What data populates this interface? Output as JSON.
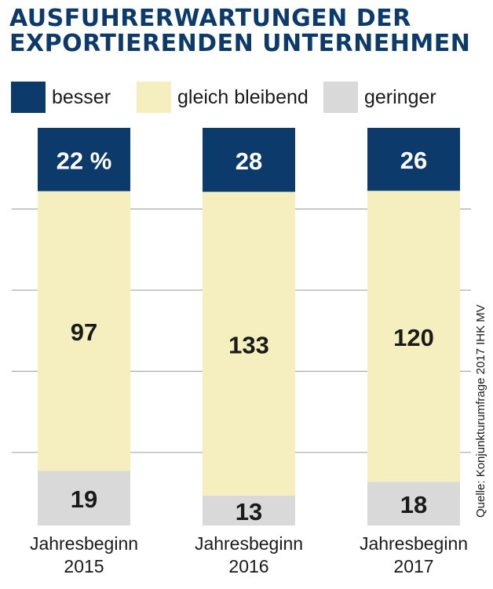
{
  "title_lines": [
    "AUSFUHRERWARTUNGEN DER",
    "EXPORTIERENDEN UNTERNEHMEN"
  ],
  "legend": [
    {
      "label": "besser",
      "color": "#0b3a6b"
    },
    {
      "label": "gleich bleibend",
      "color": "#f5efbf"
    },
    {
      "label": "geringer",
      "color": "#d9d9d9"
    }
  ],
  "source": "Quelle: Konjunkturumfrage 2017 IHK MV",
  "chart_data": {
    "type": "bar",
    "stacked": true,
    "categories": [
      "Jahresbeginn 2015",
      "Jahresbeginn 2016",
      "Jahresbeginn 2017"
    ],
    "category_lines": [
      [
        "Jahresbeginn",
        "2015"
      ],
      [
        "Jahresbeginn",
        "2016"
      ],
      [
        "Jahresbeginn",
        "2017"
      ]
    ],
    "series": [
      {
        "name": "besser",
        "values": [
          22,
          28,
          26
        ],
        "labels": [
          "22 %",
          "28",
          "26"
        ],
        "color": "#0b3a6b",
        "label_color": "#ffffff"
      },
      {
        "name": "gleich bleibend",
        "values": [
          97,
          133,
          120
        ],
        "labels": [
          "97",
          "133",
          "120"
        ],
        "color": "#f5efbf",
        "label_color": "#1a1a1a"
      },
      {
        "name": "geringer",
        "values": [
          19,
          13,
          18
        ],
        "labels": [
          "19",
          "13",
          "18"
        ],
        "color": "#d9d9d9",
        "label_color": "#1a1a1a"
      }
    ],
    "grid": true,
    "legend_position": "top"
  }
}
